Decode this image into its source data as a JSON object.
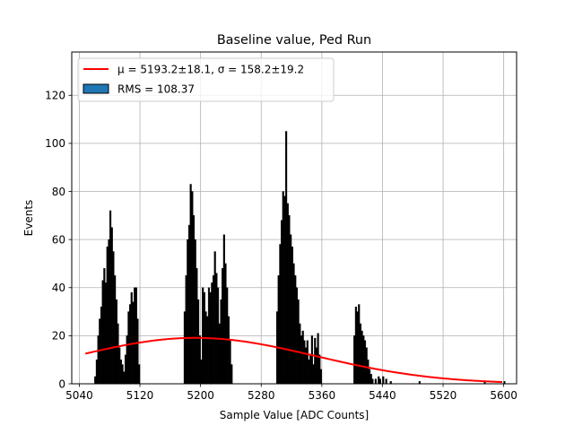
{
  "chart_data": {
    "type": "bar",
    "title": "Baseline value, Ped Run",
    "xlabel": "Sample Value [ADC Counts]",
    "ylabel": "Events",
    "xlim": [
      5030,
      5617
    ],
    "ylim": [
      0,
      138
    ],
    "xticks": [
      5040,
      5120,
      5200,
      5280,
      5360,
      5440,
      5520,
      5600
    ],
    "yticks": [
      0,
      20,
      40,
      60,
      80,
      100,
      120
    ],
    "grid": true,
    "legend_position": "top-left",
    "legend": [
      {
        "label": "μ = 5193.2±18.1, σ = 158.2±19.2",
        "kind": "line",
        "color": "#ff0000"
      },
      {
        "label": "RMS = 108.37",
        "kind": "patch",
        "color": "#1f77b4"
      }
    ],
    "histogram": {
      "bin_width": 2,
      "bars_color": "#000000",
      "bins": [
        [
          5060,
          3
        ],
        [
          5062,
          10
        ],
        [
          5064,
          20
        ],
        [
          5066,
          27
        ],
        [
          5068,
          32
        ],
        [
          5070,
          43
        ],
        [
          5072,
          48
        ],
        [
          5074,
          42
        ],
        [
          5076,
          57
        ],
        [
          5078,
          60
        ],
        [
          5080,
          72
        ],
        [
          5082,
          65
        ],
        [
          5084,
          55
        ],
        [
          5086,
          45
        ],
        [
          5088,
          35
        ],
        [
          5090,
          25
        ],
        [
          5092,
          15
        ],
        [
          5094,
          10
        ],
        [
          5096,
          8
        ],
        [
          5098,
          5
        ],
        [
          5100,
          12
        ],
        [
          5102,
          20
        ],
        [
          5104,
          30
        ],
        [
          5106,
          33
        ],
        [
          5108,
          38
        ],
        [
          5110,
          34
        ],
        [
          5112,
          40
        ],
        [
          5114,
          40
        ],
        [
          5116,
          27
        ],
        [
          5118,
          8
        ],
        [
          5178,
          30
        ],
        [
          5180,
          45
        ],
        [
          5182,
          60
        ],
        [
          5184,
          66
        ],
        [
          5186,
          83
        ],
        [
          5188,
          80
        ],
        [
          5190,
          70
        ],
        [
          5192,
          60
        ],
        [
          5194,
          48
        ],
        [
          5196,
          35
        ],
        [
          5198,
          20
        ],
        [
          5200,
          10
        ],
        [
          5202,
          40
        ],
        [
          5204,
          38
        ],
        [
          5206,
          30
        ],
        [
          5208,
          28
        ],
        [
          5210,
          40
        ],
        [
          5212,
          38
        ],
        [
          5214,
          42
        ],
        [
          5216,
          45
        ],
        [
          5218,
          55
        ],
        [
          5220,
          46
        ],
        [
          5222,
          40
        ],
        [
          5224,
          25
        ],
        [
          5226,
          35
        ],
        [
          5228,
          48
        ],
        [
          5230,
          62
        ],
        [
          5232,
          50
        ],
        [
          5234,
          40
        ],
        [
          5236,
          28
        ],
        [
          5238,
          18
        ],
        [
          5240,
          8
        ],
        [
          5300,
          30
        ],
        [
          5302,
          45
        ],
        [
          5304,
          58
        ],
        [
          5306,
          68
        ],
        [
          5308,
          80
        ],
        [
          5310,
          78
        ],
        [
          5312,
          105
        ],
        [
          5314,
          75
        ],
        [
          5316,
          70
        ],
        [
          5318,
          62
        ],
        [
          5320,
          57
        ],
        [
          5322,
          50
        ],
        [
          5324,
          45
        ],
        [
          5326,
          40
        ],
        [
          5328,
          35
        ],
        [
          5330,
          25
        ],
        [
          5332,
          20
        ],
        [
          5334,
          22
        ],
        [
          5336,
          18
        ],
        [
          5338,
          15
        ],
        [
          5340,
          18
        ],
        [
          5342,
          10
        ],
        [
          5344,
          12
        ],
        [
          5346,
          20
        ],
        [
          5348,
          8
        ],
        [
          5350,
          19
        ],
        [
          5352,
          15
        ],
        [
          5354,
          21
        ],
        [
          5356,
          12
        ],
        [
          5358,
          6
        ],
        [
          5402,
          20
        ],
        [
          5404,
          32
        ],
        [
          5406,
          30
        ],
        [
          5408,
          33
        ],
        [
          5410,
          25
        ],
        [
          5412,
          22
        ],
        [
          5414,
          20
        ],
        [
          5416,
          18
        ],
        [
          5418,
          15
        ],
        [
          5420,
          10
        ],
        [
          5422,
          6
        ],
        [
          5424,
          4
        ],
        [
          5426,
          2
        ],
        [
          5430,
          2
        ],
        [
          5434,
          3
        ],
        [
          5436,
          2
        ],
        [
          5440,
          3
        ],
        [
          5444,
          2
        ],
        [
          5450,
          1
        ],
        [
          5488,
          1
        ],
        [
          5574,
          1
        ],
        [
          5600,
          1
        ]
      ]
    },
    "fit": {
      "label": "μ = 5193.2±18.1, σ = 158.2±19.2",
      "color": "#ff0000",
      "mu": 5193.2,
      "sigma": 158.2,
      "amplitude": 19.1,
      "x_range": [
        5048,
        5598
      ]
    }
  }
}
